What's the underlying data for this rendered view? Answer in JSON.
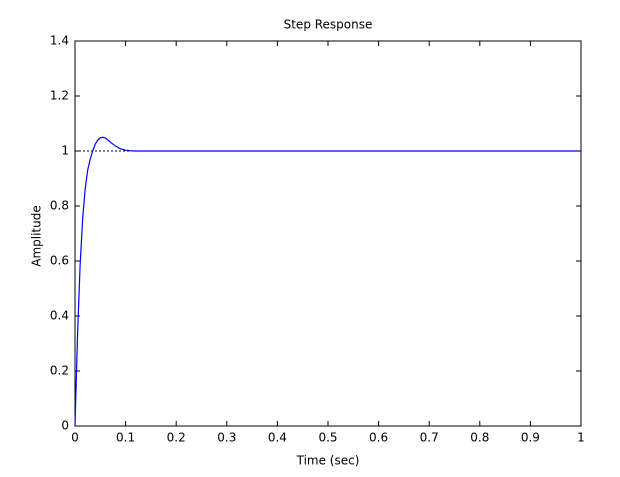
{
  "chart_data": {
    "type": "line",
    "title": "Step Response",
    "x_label": "Time (sec)",
    "y_label": "Amplitude",
    "x": [
      0,
      0.005,
      0.01,
      0.015,
      0.02,
      0.025,
      0.03,
      0.035,
      0.04,
      0.045,
      0.05,
      0.055,
      0.06,
      0.065,
      0.07,
      0.08,
      0.09,
      0.1,
      0.11,
      0.12,
      0.15,
      0.2,
      0.3,
      0.4,
      0.5,
      0.6,
      0.7,
      0.8,
      0.9,
      1
    ],
    "series": [
      {
        "color": "#0000ff",
        "values": [
          0,
          0.33,
          0.58,
          0.75,
          0.86,
          0.93,
          0.97,
          1.0,
          1.025,
          1.04,
          1.048,
          1.05,
          1.047,
          1.04,
          1.032,
          1.018,
          1.008,
          1.003,
          1.001,
          1.0,
          1.0,
          1.0,
          1.0,
          1.0,
          1.0,
          1.0,
          1.0,
          1.0,
          1.0,
          1.0
        ]
      }
    ],
    "reference_line": 1,
    "xlim": [
      0,
      1
    ],
    "ylim": [
      0,
      1.4
    ],
    "xticks": [
      0,
      0.1,
      0.2,
      0.3,
      0.4,
      0.5,
      0.6,
      0.7,
      0.8,
      0.9,
      1
    ],
    "yticks": [
      0,
      0.2,
      0.4,
      0.6,
      0.8,
      1,
      1.2,
      1.4
    ]
  }
}
